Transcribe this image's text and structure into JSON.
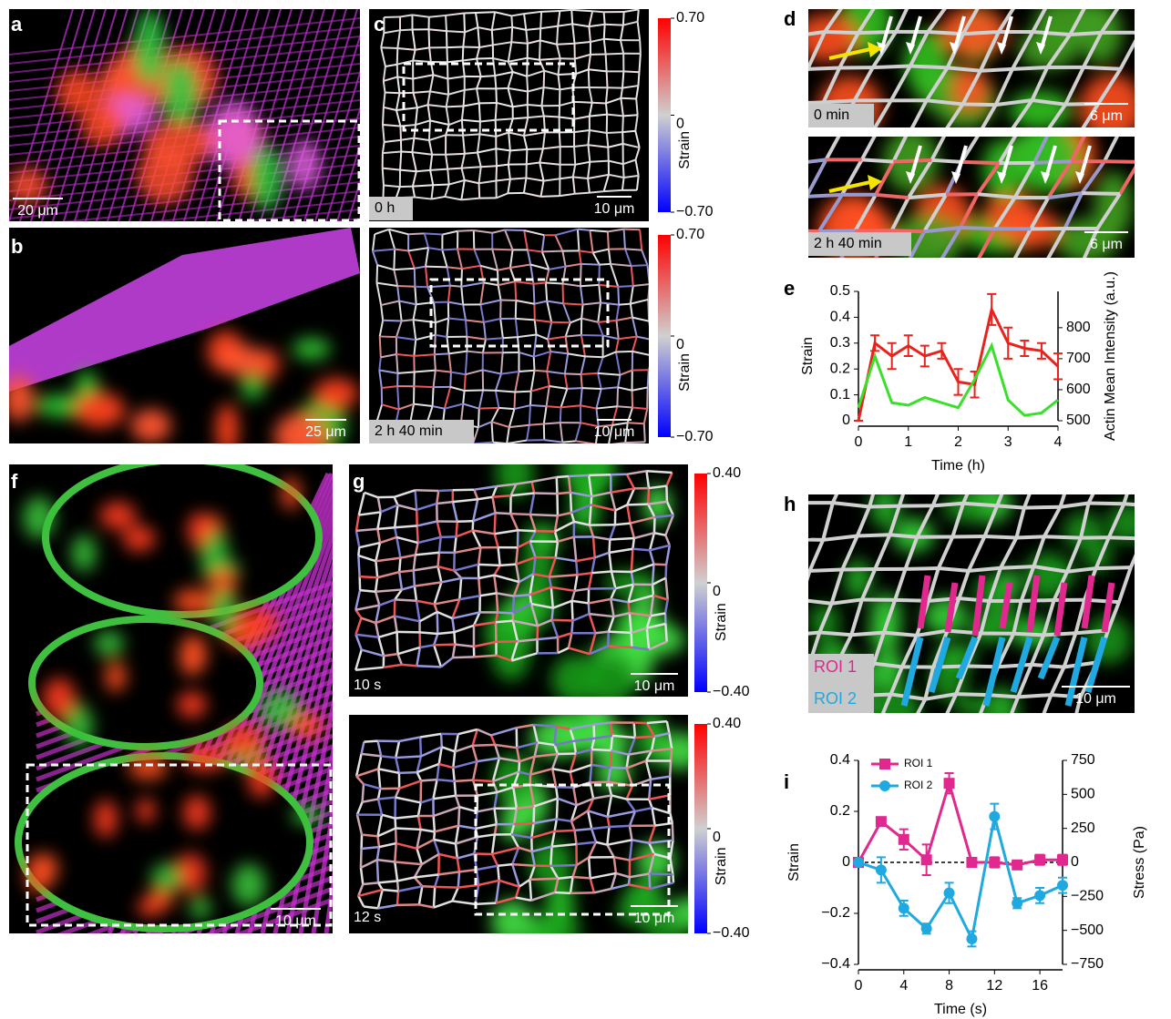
{
  "panel_labels": [
    "a",
    "b",
    "c",
    "d",
    "e",
    "f",
    "g",
    "h",
    "i"
  ],
  "image_labels": {
    "a": {
      "scale": "20 μm"
    },
    "b": {
      "scale": "25 μm"
    },
    "c_top": {
      "time": "0 h",
      "scale": "10 μm"
    },
    "c_bottom": {
      "time": "2 h 40 min",
      "scale": "10 μm"
    },
    "d_top": {
      "time": "0 min",
      "scale": "6 μm"
    },
    "d_bottom": {
      "time": "2 h 40 min",
      "scale": "6 μm"
    },
    "f": {
      "scale": "10 μm"
    },
    "g_top": {
      "time": "10 s",
      "scale": "10 μm"
    },
    "g_bottom": {
      "time": "12 s",
      "scale": "10 μm"
    },
    "h": {
      "scale": "10 μm",
      "roi1": "ROI 1",
      "roi2": "ROI 2"
    }
  },
  "colorbars": [
    {
      "label": "Strain",
      "lim": [
        -0.7,
        0.7
      ],
      "ticks": [
        {
          "value": 0.7,
          "label": "0.70"
        },
        0,
        {
          "value": -0.7,
          "label": "−0.70"
        }
      ]
    },
    {
      "label": "Strain",
      "lim": [
        -0.7,
        0.7
      ],
      "ticks": [
        {
          "value": 0.7,
          "label": "0.70"
        },
        0,
        {
          "value": -0.7,
          "label": "−0.70"
        }
      ]
    },
    {
      "label": "Strain",
      "lim": [
        -0.4,
        0.4
      ],
      "ticks": [
        {
          "value": 0.4,
          "label": "0.40"
        },
        0,
        {
          "value": -0.4,
          "label": "−0.40"
        }
      ]
    },
    {
      "label": "Strain",
      "lim": [
        -0.4,
        0.4
      ],
      "ticks": [
        {
          "value": 0.4,
          "label": "0.40"
        },
        0,
        {
          "value": -0.4,
          "label": "−0.40"
        }
      ]
    }
  ],
  "chart_data": [
    {
      "type": "line",
      "xlabel": "Time (h)",
      "ylabel": "Strain",
      "y2label": "Actin Mean Intensity (a.u.)",
      "x": [
        0,
        0.33,
        0.67,
        1,
        1.33,
        1.67,
        2,
        2.33,
        2.67,
        3,
        3.33,
        3.67,
        4
      ],
      "xlim": [
        0,
        4
      ],
      "xticks": [
        0,
        1,
        2,
        3,
        4
      ],
      "ylim": [
        0,
        0.5
      ],
      "yticks": [
        0,
        0.1,
        0.2,
        0.3,
        0.4,
        0.5
      ],
      "y2lim": [
        500,
        917
      ],
      "y2ticks": [
        500,
        600,
        700,
        800
      ],
      "series": [
        {
          "color": "#e8231d",
          "marker": "none",
          "values": [
            0,
            0.3,
            0.25,
            0.29,
            0.25,
            0.27,
            0.15,
            0.14,
            0.43,
            0.3,
            0.28,
            0.27,
            0.21
          ],
          "errors": [
            0,
            0.03,
            0.05,
            0.04,
            0.04,
            0.03,
            0.05,
            0.05,
            0.06,
            0.06,
            0.03,
            0.03,
            0.05
          ]
        },
        {
          "color": "#39e02a",
          "axis": "y2",
          "marker": "none",
          "values": [
            542,
            708,
            558,
            550,
            575,
            558,
            542,
            633,
            742,
            567,
            517,
            525,
            567
          ]
        }
      ]
    },
    {
      "type": "line",
      "xlabel": "Time (s)",
      "ylabel": "Strain",
      "y2label": "Stress (Pa)",
      "x": [
        0,
        2,
        4,
        6,
        8,
        10,
        12,
        14,
        16,
        18
      ],
      "xlim": [
        0,
        18
      ],
      "xticks": [
        0,
        4,
        8,
        12,
        16
      ],
      "ylim": [
        -0.4,
        0.4
      ],
      "yticks": [
        {
          "value": -0.4,
          "label": "−0.4"
        },
        {
          "value": -0.2,
          "label": "−0.2"
        },
        0,
        0.2,
        0.4
      ],
      "y2lim": [
        -750,
        750
      ],
      "y2ticks": [
        {
          "value": -750,
          "label": "−750"
        },
        {
          "value": -500,
          "label": "−500"
        },
        {
          "value": -250,
          "label": "−250"
        },
        0,
        250,
        500,
        750
      ],
      "zero_line": true,
      "legend": "upper left",
      "series": [
        {
          "name": "ROI 1",
          "color": "#e0288f",
          "marker": "square",
          "values": [
            0,
            0.16,
            0.09,
            0.01,
            0.31,
            0,
            0,
            -0.01,
            0.01,
            0.01
          ],
          "errors": [
            0.01,
            0.01,
            0.04,
            0.06,
            0.04,
            0.01,
            0.02,
            0.01,
            0.02,
            0.02
          ]
        },
        {
          "name": "ROI 2",
          "color": "#1fa9e0",
          "marker": "circle",
          "values": [
            0,
            -0.03,
            -0.18,
            -0.26,
            -0.12,
            -0.3,
            0.18,
            -0.16,
            -0.13,
            -0.09
          ],
          "errors": [
            0.01,
            0.05,
            0.03,
            0.02,
            0.04,
            0.03,
            0.05,
            0.02,
            0.03,
            0.03
          ]
        }
      ]
    }
  ]
}
